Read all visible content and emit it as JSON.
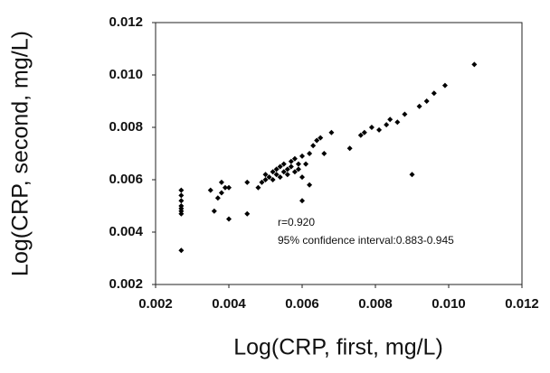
{
  "chart_data": {
    "type": "scatter",
    "xlabel": "Log(CRP, first, mg/L)",
    "ylabel": "Log(CRP, second, mg/L)",
    "annotations": [
      "r=0.920",
      "95% confidence interval:0.883-0.945"
    ],
    "color": "#000000",
    "xlim": [
      0.002,
      0.012
    ],
    "xticks": [
      {
        "value": 0.002,
        "label": "0.002"
      },
      {
        "value": 0.004,
        "label": "0.004"
      },
      {
        "value": 0.006,
        "label": "0.006"
      },
      {
        "value": 0.008,
        "label": "0.008"
      },
      {
        "value": 0.01,
        "label": "0.010"
      },
      {
        "value": 0.012,
        "label": "0.012"
      }
    ],
    "ylim": [
      0.002,
      0.012
    ],
    "yticks": [
      {
        "value": 0.002,
        "label": "0.002"
      },
      {
        "value": 0.004,
        "label": "0.004"
      },
      {
        "value": 0.006,
        "label": "0.006"
      },
      {
        "value": 0.008,
        "label": "0.008"
      },
      {
        "value": 0.01,
        "label": "0.010"
      },
      {
        "value": 0.012,
        "label": "0.012"
      }
    ],
    "x": [
      0.0027,
      0.0027,
      0.0027,
      0.0027,
      0.0027,
      0.0027,
      0.0027,
      0.0027,
      0.0035,
      0.0036,
      0.0037,
      0.0038,
      0.0038,
      0.0039,
      0.004,
      0.004,
      0.0045,
      0.0045,
      0.0048,
      0.0049,
      0.005,
      0.005,
      0.0051,
      0.0052,
      0.0052,
      0.0053,
      0.0053,
      0.0054,
      0.0054,
      0.0055,
      0.0055,
      0.0056,
      0.0056,
      0.0057,
      0.0057,
      0.0058,
      0.0058,
      0.0059,
      0.0059,
      0.006,
      0.006,
      0.006,
      0.0061,
      0.0062,
      0.0062,
      0.0063,
      0.0064,
      0.0065,
      0.0066,
      0.0068,
      0.0073,
      0.0076,
      0.0077,
      0.0079,
      0.0081,
      0.0083,
      0.0084,
      0.0086,
      0.0088,
      0.009,
      0.0092,
      0.0094,
      0.0096,
      0.0099,
      0.0107
    ],
    "values": [
      0.0033,
      0.0047,
      0.0048,
      0.0049,
      0.005,
      0.0052,
      0.0054,
      0.0056,
      0.0056,
      0.0048,
      0.0053,
      0.0059,
      0.0055,
      0.0057,
      0.0045,
      0.0057,
      0.0047,
      0.0059,
      0.0057,
      0.0059,
      0.006,
      0.0062,
      0.0061,
      0.0063,
      0.006,
      0.0064,
      0.0062,
      0.0065,
      0.0061,
      0.0063,
      0.0066,
      0.0064,
      0.0062,
      0.0067,
      0.0065,
      0.0063,
      0.0068,
      0.0066,
      0.0064,
      0.0069,
      0.0061,
      0.0052,
      0.0066,
      0.007,
      0.0058,
      0.0073,
      0.0075,
      0.0076,
      0.007,
      0.0078,
      0.0072,
      0.0077,
      0.0078,
      0.008,
      0.0079,
      0.0081,
      0.0083,
      0.0082,
      0.0085,
      0.0062,
      0.0088,
      0.009,
      0.0093,
      0.0096,
      0.0104
    ]
  }
}
